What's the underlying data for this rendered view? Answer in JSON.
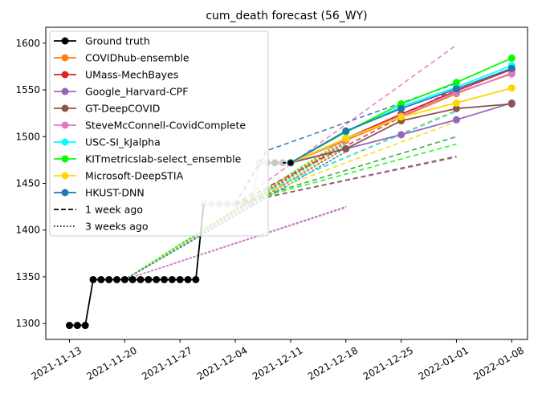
{
  "chart_data": {
    "type": "line",
    "title": "cum_death forecast (56_WY)",
    "xlabel": "",
    "ylabel": "",
    "x_range": [
      "2021-11-10",
      "2022-01-10"
    ],
    "ylim": [
      1283,
      1617
    ],
    "x_ticks": [
      "2021-11-13",
      "2021-11-20",
      "2021-11-27",
      "2021-12-04",
      "2021-12-11",
      "2021-12-18",
      "2021-12-25",
      "2022-01-01",
      "2022-01-08"
    ],
    "y_ticks": [
      1300,
      1350,
      1400,
      1450,
      1500,
      1550,
      1600
    ],
    "grid": false,
    "legend_position": "top-left",
    "legend": [
      {
        "label": "Ground truth",
        "color": "#000000",
        "style": "marker"
      },
      {
        "label": "COVIDhub-ensemble",
        "color": "#ff7f0e",
        "style": "marker"
      },
      {
        "label": "UMass-MechBayes",
        "color": "#d62728",
        "style": "marker"
      },
      {
        "label": "Google_Harvard-CPF",
        "color": "#9467bd",
        "style": "marker"
      },
      {
        "label": "GT-DeepCOVID",
        "color": "#8c564b",
        "style": "marker"
      },
      {
        "label": "SteveMcConnell-CovidComplete",
        "color": "#e377c2",
        "style": "marker"
      },
      {
        "label": "USC-SI_kJalpha",
        "color": "#00ffff",
        "style": "marker"
      },
      {
        "label": "KITmetricslab-select_ensemble",
        "color": "#00ff00",
        "style": "marker"
      },
      {
        "label": "Microsoft-DeepSTIA",
        "color": "#ffd700",
        "style": "marker"
      },
      {
        "label": "HKUST-DNN",
        "color": "#1f77b4",
        "style": "marker"
      },
      {
        "label": "1 week ago",
        "color": "#000000",
        "style": "dashed"
      },
      {
        "label": "3 weeks ago",
        "color": "#000000",
        "style": "dotted"
      }
    ],
    "ground_truth_black": {
      "x": [
        "2021-11-13",
        "2021-11-14",
        "2021-11-15",
        "2021-11-16",
        "2021-11-17",
        "2021-11-18",
        "2021-11-19",
        "2021-11-20",
        "2021-11-21",
        "2021-11-22",
        "2021-11-23",
        "2021-11-24",
        "2021-11-25",
        "2021-11-26",
        "2021-11-27",
        "2021-11-28",
        "2021-11-29"
      ],
      "y": [
        1298,
        1298,
        1298,
        1347,
        1347,
        1347,
        1347,
        1347,
        1347,
        1347,
        1347,
        1347,
        1347,
        1347,
        1347,
        1347,
        1347
      ]
    },
    "ground_truth_grey": {
      "x": [
        "2021-11-30",
        "2021-12-01",
        "2021-12-02",
        "2021-12-03",
        "2021-12-04",
        "2021-12-05",
        "2021-12-06",
        "2021-12-07",
        "2021-12-08",
        "2021-12-09",
        "2021-12-10"
      ],
      "y": [
        1428,
        1428,
        1428,
        1428,
        1428,
        1428,
        1428,
        1472,
        1472,
        1472,
        1472
      ]
    },
    "current_truth": {
      "x": [
        "2021-12-11"
      ],
      "y": [
        1472
      ]
    },
    "series": [
      {
        "name": "COVIDhub-ensemble",
        "color": "#ff7f0e",
        "x": [
          "2021-12-11",
          "2021-12-18",
          "2021-12-25",
          "2022-01-01",
          "2022-01-08"
        ],
        "y": [
          1472,
          1496,
          1521,
          1546,
          1568
        ]
      },
      {
        "name": "UMass-MechBayes",
        "color": "#d62728",
        "x": [
          "2021-12-11",
          "2021-12-18",
          "2021-12-25",
          "2022-01-01",
          "2022-01-08"
        ],
        "y": [
          1472,
          1498,
          1524,
          1549,
          1572
        ]
      },
      {
        "name": "Google_Harvard-CPF",
        "color": "#9467bd",
        "x": [
          "2021-12-11",
          "2021-12-18",
          "2021-12-25",
          "2022-01-01",
          "2022-01-08"
        ],
        "y": [
          1472,
          1487,
          1502,
          1518,
          1536
        ]
      },
      {
        "name": "GT-DeepCOVID",
        "color": "#8c564b",
        "x": [
          "2021-12-11",
          "2021-12-18",
          "2021-12-25",
          "2022-01-01",
          "2022-01-08"
        ],
        "y": [
          1472,
          1487,
          1517,
          1530,
          1535
        ]
      },
      {
        "name": "SteveMcConnell-CovidComplete",
        "color": "#e377c2",
        "x": [
          "2021-12-11",
          "2021-12-18",
          "2021-12-25",
          "2022-01-01",
          "2022-01-08"
        ],
        "y": [
          1472,
          1497,
          1522,
          1547,
          1567
        ]
      },
      {
        "name": "USC-SI_kJalpha",
        "color": "#00ffff",
        "x": [
          "2021-12-11",
          "2021-12-18",
          "2021-12-25",
          "2022-01-01",
          "2022-01-08"
        ],
        "y": [
          1472,
          1505,
          1532,
          1553,
          1576
        ]
      },
      {
        "name": "KITmetricslab-select_ensemble",
        "color": "#00ff00",
        "x": [
          "2021-12-11",
          "2021-12-18",
          "2021-12-25",
          "2022-01-01",
          "2022-01-08"
        ],
        "y": [
          1472,
          1505,
          1535,
          1558,
          1584
        ]
      },
      {
        "name": "Microsoft-DeepSTIA",
        "color": "#ffd700",
        "x": [
          "2021-12-11",
          "2021-12-18",
          "2021-12-25",
          "2022-01-01",
          "2022-01-08"
        ],
        "y": [
          1472,
          1498,
          1521,
          1536,
          1552
        ]
      },
      {
        "name": "HKUST-DNN",
        "color": "#1f77b4",
        "x": [
          "2021-12-11",
          "2021-12-18",
          "2021-12-25",
          "2022-01-01",
          "2022-01-08"
        ],
        "y": [
          1472,
          1506,
          1530,
          1551,
          1573
        ]
      }
    ],
    "forecasts_1_week_ago": [
      {
        "color": "#ff7f0e",
        "x": [
          "2021-12-04",
          "2022-01-01"
        ],
        "y": [
          1428,
          1528
        ]
      },
      {
        "color": "#d62728",
        "x": [
          "2021-12-04",
          "2022-01-01"
        ],
        "y": [
          1428,
          1552
        ]
      },
      {
        "color": "#9467bd",
        "x": [
          "2021-12-04",
          "2022-01-01"
        ],
        "y": [
          1428,
          1478
        ]
      },
      {
        "color": "#8c564b",
        "x": [
          "2021-12-04",
          "2022-01-01"
        ],
        "y": [
          1428,
          1479
        ]
      },
      {
        "color": "#e377c2",
        "x": [
          "2021-12-04",
          "2022-01-01"
        ],
        "y": [
          1428,
          1598
        ]
      },
      {
        "color": "#00ffff",
        "x": [
          "2021-12-04",
          "2022-01-01"
        ],
        "y": [
          1428,
          1527
        ]
      },
      {
        "color": "#00ff00",
        "x": [
          "2021-12-04",
          "2022-01-01"
        ],
        "y": [
          1428,
          1492
        ]
      },
      {
        "color": "#ffd700",
        "x": [
          "2021-12-04",
          "2022-01-01"
        ],
        "y": [
          1428,
          1516
        ]
      },
      {
        "color": "#1f77b4",
        "x": [
          "2021-12-04",
          "2021-12-08",
          "2022-01-01"
        ],
        "y": [
          1428,
          1485,
          1557
        ]
      },
      {
        "color": "#2ca02c",
        "x": [
          "2021-12-04",
          "2022-01-01"
        ],
        "y": [
          1428,
          1500
        ]
      }
    ],
    "forecasts_3_weeks_ago": [
      {
        "color": "#ff7f0e",
        "x": [
          "2021-11-20",
          "2021-12-18"
        ],
        "y": [
          1347,
          1496
        ]
      },
      {
        "color": "#d62728",
        "x": [
          "2021-11-20",
          "2021-12-18"
        ],
        "y": [
          1347,
          1494
        ]
      },
      {
        "color": "#9467bd",
        "x": [
          "2021-11-20",
          "2021-12-18"
        ],
        "y": [
          1347,
          1425
        ]
      },
      {
        "color": "#8c564b",
        "x": [
          "2021-11-20",
          "2021-12-18"
        ],
        "y": [
          1347,
          1488
        ]
      },
      {
        "color": "#e377c2",
        "x": [
          "2021-11-20",
          "2021-12-18"
        ],
        "y": [
          1347,
          1424
        ]
      },
      {
        "color": "#00ffff",
        "x": [
          "2021-11-20",
          "2021-12-18"
        ],
        "y": [
          1347,
          1492
        ]
      },
      {
        "color": "#00ff00",
        "x": [
          "2021-11-20",
          "2021-12-18"
        ],
        "y": [
          1347,
          1498
        ]
      },
      {
        "color": "#ffd700",
        "x": [
          "2021-11-20",
          "2021-12-18"
        ],
        "y": [
          1347,
          1490
        ]
      },
      {
        "color": "#1f77b4",
        "x": [
          "2021-11-20",
          "2021-12-18"
        ],
        "y": [
          1347,
          1484
        ]
      }
    ]
  }
}
